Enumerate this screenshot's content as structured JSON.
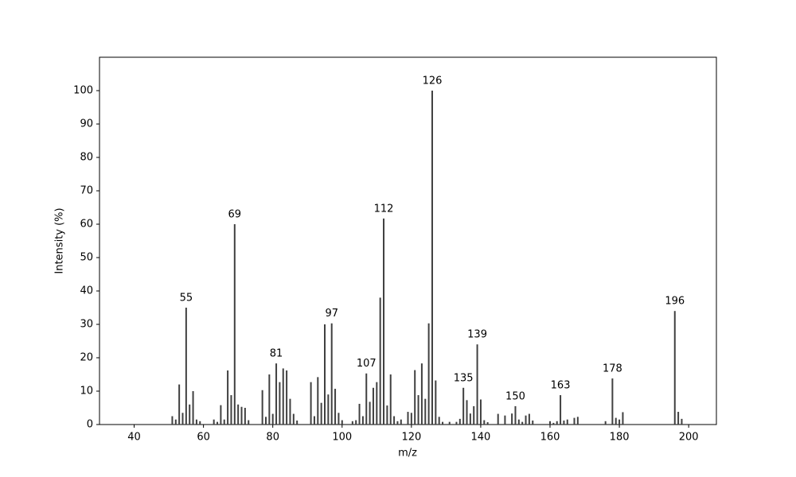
{
  "chart_data": {
    "type": "bar",
    "xlabel": "m/z",
    "ylabel": "Intensity (%)",
    "color": "#404040",
    "x": [
      51,
      52,
      53,
      54,
      55,
      56,
      57,
      58,
      59,
      63,
      64,
      65,
      66,
      67,
      68,
      69,
      70,
      71,
      72,
      73,
      77,
      78,
      79,
      80,
      81,
      82,
      83,
      84,
      85,
      86,
      87,
      91,
      92,
      93,
      94,
      95,
      96,
      97,
      98,
      99,
      100,
      103,
      104,
      105,
      106,
      107,
      108,
      109,
      110,
      111,
      112,
      113,
      114,
      115,
      116,
      117,
      119,
      120,
      121,
      122,
      123,
      124,
      125,
      126,
      127,
      128,
      129,
      131,
      133,
      134,
      135,
      136,
      137,
      138,
      139,
      140,
      141,
      142,
      145,
      147,
      149,
      150,
      151,
      152,
      153,
      154,
      155,
      160,
      161,
      162,
      163,
      164,
      165,
      167,
      168,
      176,
      178,
      179,
      180,
      181,
      196,
      197,
      198
    ],
    "values": [
      2.5,
      1.5,
      12,
      3.5,
      35,
      6,
      10,
      1.5,
      1,
      1.5,
      0.8,
      5.8,
      1.5,
      16.2,
      8.8,
      60,
      6,
      5.3,
      5,
      1.3,
      10.3,
      2.3,
      15,
      3.2,
      18.3,
      12.7,
      16.8,
      16.2,
      7.7,
      3.2,
      1.2,
      12.7,
      2.5,
      14.2,
      6.5,
      30,
      9,
      30.3,
      10.7,
      3.5,
      1.3,
      1,
      1.3,
      6.2,
      2.5,
      15.3,
      6.8,
      11,
      12.7,
      38,
      61.7,
      5.7,
      15,
      2.5,
      1,
      1.5,
      3.8,
      3.5,
      16.3,
      8.8,
      18.3,
      7.7,
      30.3,
      100,
      13.2,
      2.3,
      0.8,
      0.8,
      0.8,
      1.7,
      11,
      7.3,
      3.3,
      5.5,
      24,
      7.5,
      1.3,
      0.7,
      3.2,
      2.7,
      3.3,
      5.5,
      1.5,
      0.8,
      2.7,
      3.2,
      1.2,
      1,
      0.5,
      1,
      8.8,
      1.2,
      1.5,
      2,
      2.3,
      1,
      13.8,
      2,
      1.5,
      3.7,
      34,
      3.8,
      1.7
    ],
    "labeled_peaks": [
      55,
      69,
      81,
      97,
      107,
      112,
      126,
      135,
      139,
      150,
      163,
      178,
      196
    ],
    "xlim": [
      30,
      208
    ],
    "xticks": [
      40,
      60,
      80,
      100,
      120,
      140,
      160,
      180,
      200
    ],
    "ylim": [
      0,
      110
    ],
    "yticks": [
      0,
      10,
      20,
      30,
      40,
      50,
      60,
      70,
      80,
      90,
      100
    ]
  }
}
